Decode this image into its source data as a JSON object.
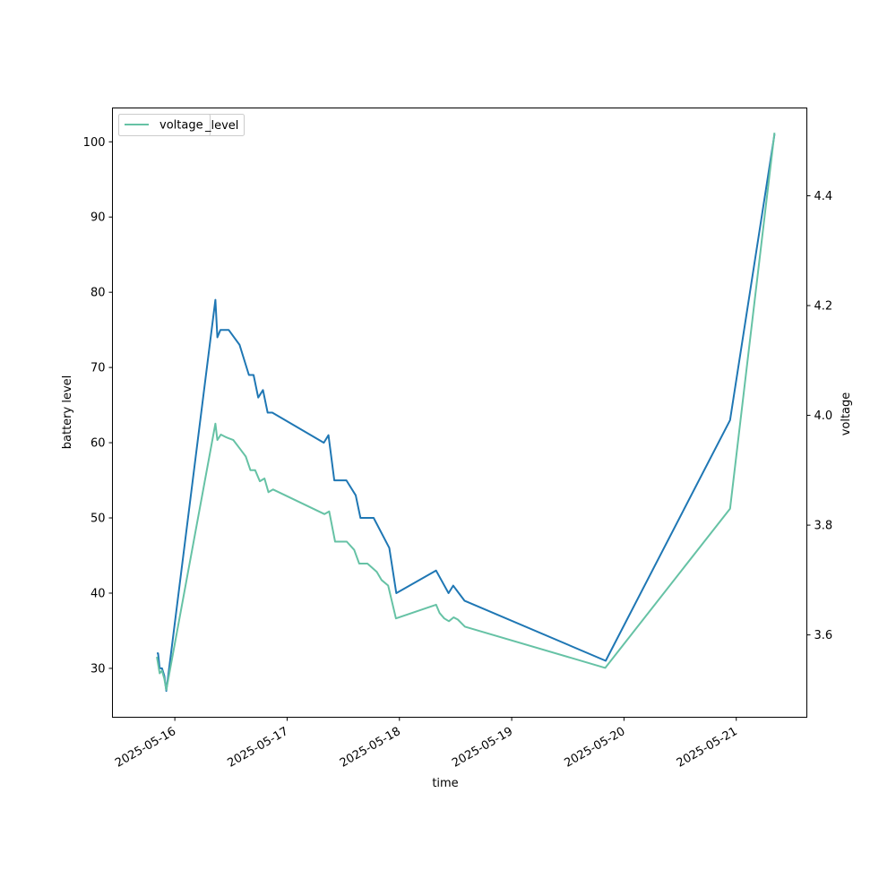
{
  "chart_data": {
    "type": "line",
    "xlabel": "time",
    "ylabel_left": "battery level",
    "ylabel_right": "voltage",
    "ylim_left": [
      23.5,
      104.5
    ],
    "ylim_right": [
      3.45,
      4.56
    ],
    "xlim": [
      "2025-05-15 10:40",
      "2025-05-21 15:05"
    ],
    "x_ticks": [
      "2025-05-16",
      "2025-05-17",
      "2025-05-18",
      "2025-05-19",
      "2025-05-20",
      "2025-05-21"
    ],
    "y_ticks_left": [
      30,
      40,
      50,
      60,
      70,
      80,
      90,
      100
    ],
    "y_ticks_right": [
      3.6,
      3.8,
      4.0,
      4.2,
      4.4
    ],
    "legend": {
      "placement": "top-left",
      "labels": [
        "voltage",
        "_level"
      ]
    },
    "series": [
      {
        "name": "level",
        "axis": "left",
        "color": "#1f77b4",
        "points": [
          [
            "2025-05-15 20:10",
            32
          ],
          [
            "2025-05-15 20:25",
            32
          ],
          [
            "2025-05-15 20:45",
            30
          ],
          [
            "2025-05-15 21:15",
            30
          ],
          [
            "2025-05-15 21:45",
            29
          ],
          [
            "2025-05-15 22:10",
            27
          ],
          [
            "2025-05-16 08:40",
            79
          ],
          [
            "2025-05-16 09:05",
            74
          ],
          [
            "2025-05-16 09:45",
            75
          ],
          [
            "2025-05-16 11:30",
            75
          ],
          [
            "2025-05-16 13:50",
            73
          ],
          [
            "2025-05-16 15:50",
            69
          ],
          [
            "2025-05-16 16:50",
            69
          ],
          [
            "2025-05-16 17:50",
            66
          ],
          [
            "2025-05-16 18:50",
            67
          ],
          [
            "2025-05-16 19:50",
            64
          ],
          [
            "2025-05-16 20:50",
            64
          ],
          [
            "2025-05-17 07:50",
            60
          ],
          [
            "2025-05-17 08:50",
            61
          ],
          [
            "2025-05-17 10:05",
            55
          ],
          [
            "2025-05-17 12:40",
            55
          ],
          [
            "2025-05-17 14:40",
            53
          ],
          [
            "2025-05-17 15:40",
            50
          ],
          [
            "2025-05-17 18:30",
            50
          ],
          [
            "2025-05-17 21:50",
            46
          ],
          [
            "2025-05-17 23:20",
            40
          ],
          [
            "2025-05-18 07:50",
            43
          ],
          [
            "2025-05-18 10:30",
            40
          ],
          [
            "2025-05-18 11:30",
            41
          ],
          [
            "2025-05-18 13:55",
            39
          ],
          [
            "2025-05-19 20:05",
            31
          ],
          [
            "2025-05-20 22:40",
            63
          ],
          [
            "2025-05-21 08:10",
            101
          ]
        ]
      },
      {
        "name": "voltage",
        "axis": "right",
        "color": "#66c2a5",
        "points": [
          [
            "2025-05-15 20:10",
            3.56
          ],
          [
            "2025-05-15 20:45",
            3.53
          ],
          [
            "2025-05-15 21:15",
            3.535
          ],
          [
            "2025-05-15 21:45",
            3.52
          ],
          [
            "2025-05-15 22:10",
            3.5
          ],
          [
            "2025-05-16 08:40",
            3.985
          ],
          [
            "2025-05-16 09:05",
            3.955
          ],
          [
            "2025-05-16 09:50",
            3.965
          ],
          [
            "2025-05-16 11:00",
            3.96
          ],
          [
            "2025-05-16 12:30",
            3.955
          ],
          [
            "2025-05-16 13:50",
            3.94
          ],
          [
            "2025-05-16 15:10",
            3.925
          ],
          [
            "2025-05-16 16:10",
            3.9
          ],
          [
            "2025-05-16 17:10",
            3.9
          ],
          [
            "2025-05-16 18:10",
            3.88
          ],
          [
            "2025-05-16 19:10",
            3.885
          ],
          [
            "2025-05-16 20:00",
            3.86
          ],
          [
            "2025-05-16 21:00",
            3.865
          ],
          [
            "2025-05-17 08:00",
            3.82
          ],
          [
            "2025-05-17 09:00",
            3.825
          ],
          [
            "2025-05-17 10:15",
            3.77
          ],
          [
            "2025-05-17 12:45",
            3.77
          ],
          [
            "2025-05-17 14:20",
            3.755
          ],
          [
            "2025-05-17 15:25",
            3.73
          ],
          [
            "2025-05-17 17:10",
            3.73
          ],
          [
            "2025-05-17 19:10",
            3.715
          ],
          [
            "2025-05-17 20:10",
            3.7
          ],
          [
            "2025-05-17 21:35",
            3.69
          ],
          [
            "2025-05-17 23:15",
            3.63
          ],
          [
            "2025-05-18 07:50",
            3.655
          ],
          [
            "2025-05-18 08:35",
            3.64
          ],
          [
            "2025-05-18 09:35",
            3.63
          ],
          [
            "2025-05-18 10:35",
            3.625
          ],
          [
            "2025-05-18 11:35",
            3.632
          ],
          [
            "2025-05-18 12:30",
            3.628
          ],
          [
            "2025-05-18 14:00",
            3.615
          ],
          [
            "2025-05-19 20:00",
            3.54
          ],
          [
            "2025-05-20 22:40",
            3.83
          ],
          [
            "2025-05-21 08:10",
            4.515
          ]
        ]
      }
    ]
  }
}
